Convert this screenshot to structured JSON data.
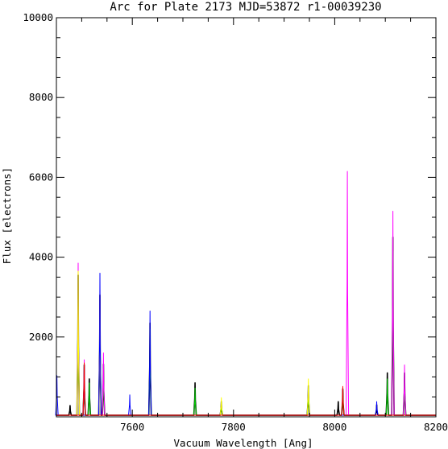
{
  "chart_data": {
    "type": "line",
    "title": "Arc for Plate 2173  MJD=53872  r1-00039230",
    "xlabel": "Vacuum Wavelength [Ang]",
    "ylabel": "Flux [electrons]",
    "xlim": [
      7450,
      8200
    ],
    "ylim": [
      0,
      10000
    ],
    "x_major_ticks": [
      7600,
      7800,
      8000,
      8200
    ],
    "x_tick_labels": [
      "7600",
      "7800",
      "8000",
      "8200"
    ],
    "y_major_ticks": [
      2000,
      4000,
      6000,
      8000,
      10000
    ],
    "y_tick_labels": [
      "2000",
      "4000",
      "6000",
      "8000",
      "10000"
    ],
    "grid": false,
    "legend": "none",
    "baseline": 40,
    "series": [
      {
        "color": "#000000",
        "lines": [
          {
            "x": 7477,
            "y": 280
          },
          {
            "x": 7493,
            "y": 3550
          },
          {
            "x": 7505,
            "y": 1300
          },
          {
            "x": 7515,
            "y": 950
          },
          {
            "x": 7536,
            "y": 3050
          },
          {
            "x": 7543,
            "y": 1320
          },
          {
            "x": 7635,
            "y": 2350
          },
          {
            "x": 7724,
            "y": 850
          },
          {
            "x": 7776,
            "y": 380
          },
          {
            "x": 7948,
            "y": 780
          },
          {
            "x": 8007,
            "y": 380
          },
          {
            "x": 8016,
            "y": 700
          },
          {
            "x": 8083,
            "y": 300
          },
          {
            "x": 8104,
            "y": 1100
          },
          {
            "x": 8115,
            "y": 4500
          },
          {
            "x": 8138,
            "y": 1100
          }
        ]
      },
      {
        "color": "#00cc00",
        "lines": [
          {
            "x": 7493,
            "y": 3300
          },
          {
            "x": 7505,
            "y": 1150
          },
          {
            "x": 7515,
            "y": 850
          },
          {
            "x": 7536,
            "y": 2850
          },
          {
            "x": 7543,
            "y": 1200
          },
          {
            "x": 7635,
            "y": 2200
          },
          {
            "x": 7724,
            "y": 720
          },
          {
            "x": 7776,
            "y": 350
          },
          {
            "x": 7948,
            "y": 700
          },
          {
            "x": 8016,
            "y": 620
          },
          {
            "x": 8104,
            "y": 950
          },
          {
            "x": 8115,
            "y": 4150
          },
          {
            "x": 8138,
            "y": 980
          }
        ]
      },
      {
        "color": "#ff00ff",
        "lines": [
          {
            "x": 7493,
            "y": 3850
          },
          {
            "x": 7505,
            "y": 1430
          },
          {
            "x": 7536,
            "y": 3200
          },
          {
            "x": 7543,
            "y": 1600
          },
          {
            "x": 8025,
            "y": 6150
          },
          {
            "x": 8115,
            "y": 5150
          },
          {
            "x": 8138,
            "y": 1300
          }
        ]
      },
      {
        "color": "#ffff00",
        "lines": [
          {
            "x": 7493,
            "y": 3650
          },
          {
            "x": 7536,
            "y": 3100
          },
          {
            "x": 7776,
            "y": 480
          },
          {
            "x": 7948,
            "y": 950
          }
        ]
      },
      {
        "color": "#0000ff",
        "lines": [
          {
            "x": 7451,
            "y": 1030
          },
          {
            "x": 7536,
            "y": 3600
          },
          {
            "x": 7595,
            "y": 550
          },
          {
            "x": 7635,
            "y": 2650
          },
          {
            "x": 8083,
            "y": 380
          }
        ]
      },
      {
        "color": "#ff0000",
        "lines": [
          {
            "x": 7505,
            "y": 1350
          },
          {
            "x": 8016,
            "y": 760
          }
        ]
      }
    ]
  }
}
